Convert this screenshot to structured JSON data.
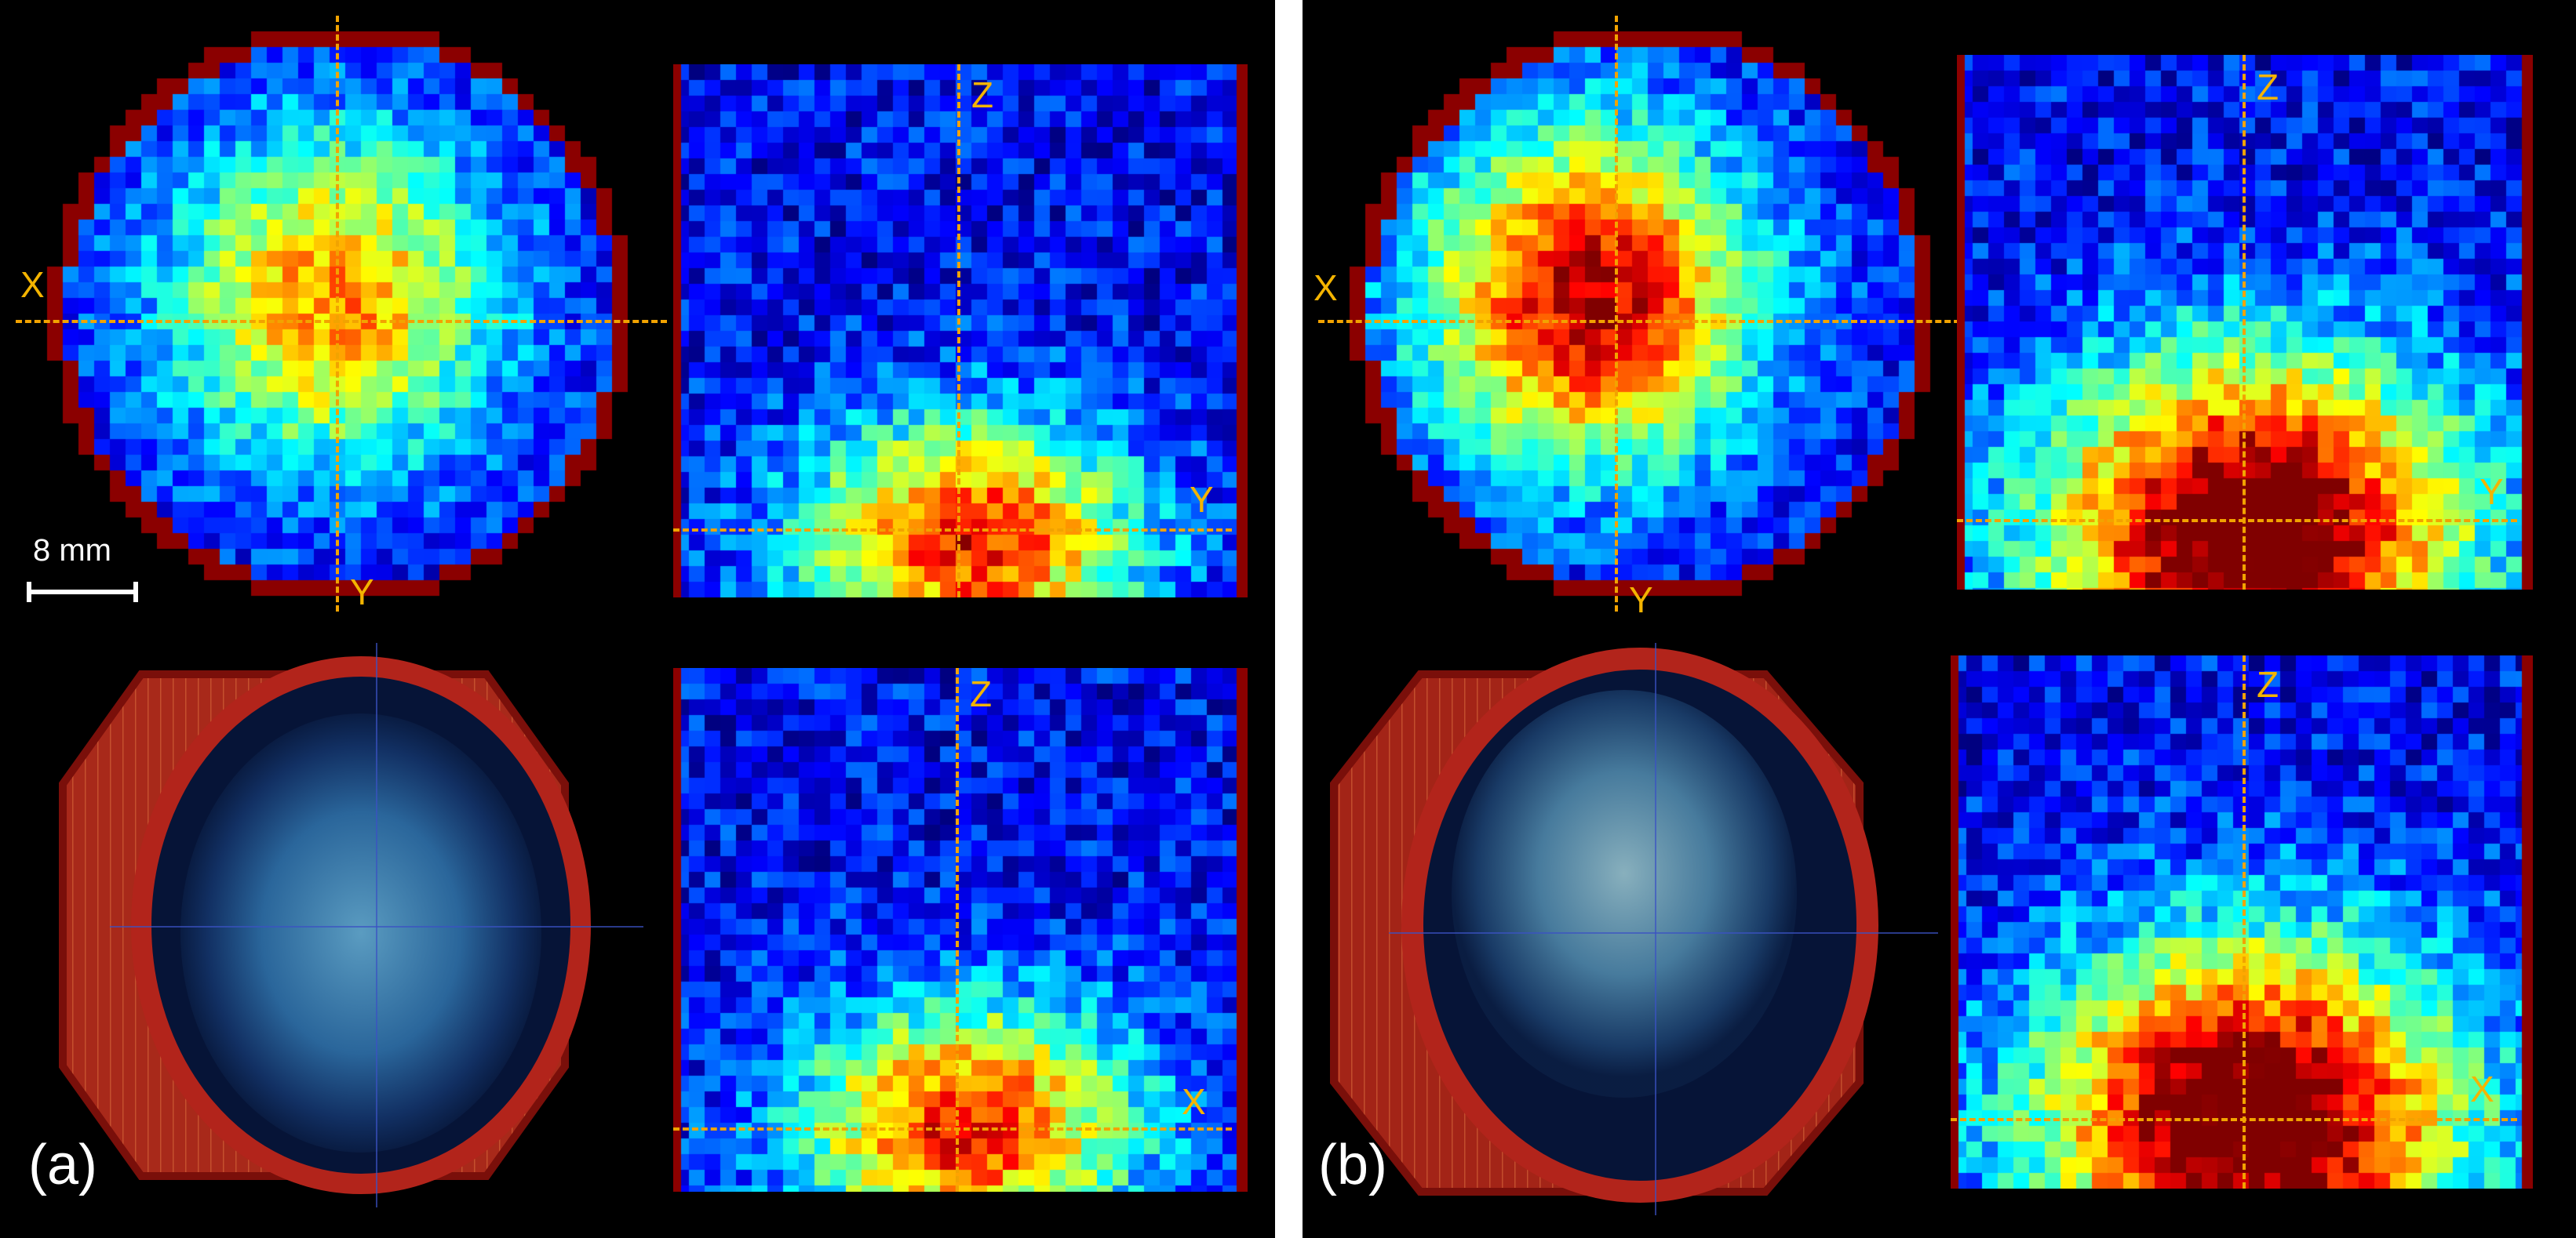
{
  "panels": [
    {
      "tag": "(a)",
      "scale_bar": "8 mm",
      "axial": {
        "horizontal": "X",
        "vertical": "Y"
      },
      "side_top": {
        "vertical": "Z",
        "horizontal": "Y"
      },
      "side_bottom": {
        "vertical": "Z",
        "horizontal": "X"
      },
      "intensity": "moderate"
    },
    {
      "tag": "(b)",
      "axial": {
        "horizontal": "X",
        "vertical": "Y"
      },
      "side_top": {
        "vertical": "Z",
        "horizontal": "Y"
      },
      "side_bottom": {
        "vertical": "Z",
        "horizontal": "X"
      },
      "intensity": "high"
    }
  ],
  "colors": {
    "background": "#000000",
    "crosshair": "#f2a300",
    "axis_label": "#f4b400",
    "boundary": "#8b0000",
    "colormap": "jet"
  }
}
